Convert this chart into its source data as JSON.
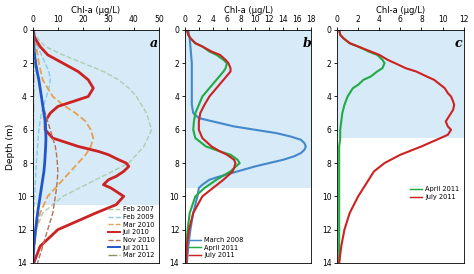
{
  "panel_a": {
    "title": "Chl-a (μg/L)",
    "xlim": [
      0,
      50
    ],
    "xticks": [
      0,
      10,
      20,
      30,
      40,
      50
    ],
    "ylim": [
      14,
      0
    ],
    "yticks": [
      0,
      2,
      4,
      6,
      8,
      10,
      12,
      14
    ],
    "label": "a",
    "bg_depth_start": 0,
    "bg_depth_end": 10.5,
    "series": [
      {
        "name": "Feb 2007",
        "color": "#aacfb0",
        "linestyle": "--",
        "linewidth": 1.0,
        "depth": [
          0,
          0.5,
          1,
          1.5,
          2,
          2.5,
          3,
          3.5,
          4,
          5,
          6,
          7,
          8,
          9,
          10,
          11,
          12,
          13,
          14
        ],
        "chl": [
          0.5,
          2,
          5,
          12,
          20,
          28,
          34,
          38,
          41,
          45,
          47,
          44,
          38,
          25,
          12,
          4,
          1.5,
          0.8,
          0.3
        ]
      },
      {
        "name": "Feb 2009",
        "color": "#88cce8",
        "linestyle": "--",
        "linewidth": 1.0,
        "depth": [
          0,
          0.5,
          1,
          1.5,
          2,
          2.5,
          3,
          3.5,
          4,
          4.5,
          5,
          5.5,
          6,
          7,
          8,
          9,
          10,
          11,
          12,
          13,
          14
        ],
        "chl": [
          0.5,
          1,
          2,
          3.5,
          5,
          6.5,
          7,
          6.5,
          5.5,
          4.5,
          3.5,
          3,
          2.5,
          2,
          1.5,
          1.2,
          0.8,
          0.5,
          0.3,
          0.2,
          0.2
        ]
      },
      {
        "name": "Mar 2010",
        "color": "#e8a050",
        "linestyle": "--",
        "linewidth": 1.3,
        "depth": [
          0,
          0.5,
          1,
          1.5,
          2,
          3,
          4,
          4.5,
          5,
          5.5,
          6,
          6.5,
          7,
          7.5,
          8,
          9,
          10,
          11,
          12,
          13,
          14
        ],
        "chl": [
          0.5,
          1,
          1.5,
          2,
          2.5,
          4,
          8,
          12,
          17,
          21,
          23,
          24,
          23,
          21,
          18,
          12,
          6,
          3,
          1.5,
          0.8,
          0.3
        ]
      },
      {
        "name": "Jul 2010",
        "color": "#cc2222",
        "linestyle": "-",
        "linewidth": 2.0,
        "depth": [
          0,
          0.3,
          0.5,
          1,
          1.5,
          2,
          2.5,
          3,
          3.5,
          4,
          4.2,
          4.4,
          4.6,
          5,
          5.5,
          6,
          6.5,
          7,
          7.3,
          7.5,
          7.8,
          8,
          8.2,
          8.5,
          8.8,
          9,
          9.3,
          9.5,
          9.8,
          10,
          10.5,
          11,
          12,
          13,
          14
        ],
        "chl": [
          0.3,
          0.5,
          1,
          3,
          6,
          12,
          18,
          22,
          24,
          22,
          18,
          14,
          10,
          7,
          5,
          5,
          8,
          18,
          26,
          30,
          34,
          37,
          38,
          36,
          33,
          30,
          28,
          31,
          34,
          36,
          33,
          25,
          10,
          3,
          0.5
        ]
      },
      {
        "name": "Nov 2010",
        "color": "#b87050",
        "linestyle": "--",
        "linewidth": 1.0,
        "depth": [
          0,
          0.5,
          1,
          1.5,
          2,
          2.5,
          3,
          3.5,
          4,
          4.5,
          5,
          5.5,
          6,
          6.5,
          7,
          7.5,
          8,
          8.5,
          9,
          9.5,
          10,
          10.5,
          11,
          12,
          13,
          14
        ],
        "chl": [
          0.3,
          0.5,
          0.8,
          1,
          1.5,
          2,
          2.5,
          3,
          3.5,
          4,
          5,
          6,
          7,
          8,
          9,
          9.5,
          9.8,
          10,
          9.8,
          9.5,
          9,
          8.5,
          8,
          6,
          4,
          2
        ]
      },
      {
        "name": "Jul 2011",
        "color": "#2255cc",
        "linestyle": "-",
        "linewidth": 2.0,
        "depth": [
          0,
          0.5,
          1,
          1.5,
          2,
          2.5,
          3,
          3.5,
          4,
          4.5,
          5,
          5.5,
          6,
          6.5,
          7,
          7.5,
          8,
          8.5,
          9,
          9.5,
          10,
          10.5,
          11,
          12,
          13,
          14
        ],
        "chl": [
          0.2,
          0.3,
          0.5,
          0.8,
          1.2,
          1.8,
          2.5,
          3,
          3.5,
          4,
          4.5,
          5,
          5.2,
          5.3,
          5.2,
          5,
          4.8,
          4.5,
          4,
          3.5,
          3,
          2.5,
          2,
          1.2,
          0.5,
          0.2
        ]
      },
      {
        "name": "Mar 2012",
        "color": "#909060",
        "linestyle": "-.",
        "linewidth": 1.0,
        "depth": [
          0,
          0.5,
          1,
          1.5,
          2,
          2.5,
          3,
          3.5,
          4,
          5,
          6,
          7,
          8,
          9,
          10,
          11,
          12,
          13,
          14
        ],
        "chl": [
          0.2,
          0.3,
          0.4,
          0.5,
          0.5,
          0.5,
          0.5,
          0.5,
          0.4,
          0.4,
          0.3,
          0.3,
          0.3,
          0.2,
          0.2,
          0.2,
          0.2,
          0.2,
          0.2
        ]
      }
    ]
  },
  "panel_b": {
    "title": "Chl-a (μg/L)",
    "xlim": [
      0,
      18
    ],
    "xticks": [
      0,
      2,
      4,
      6,
      8,
      10,
      12,
      14,
      16,
      18
    ],
    "ylim": [
      14,
      0
    ],
    "yticks": [
      0,
      2,
      4,
      6,
      8,
      10,
      12,
      14
    ],
    "label": "b",
    "bg_depth_start": 0,
    "bg_depth_end": 9.5,
    "series": [
      {
        "name": "March 2008",
        "color": "#4488cc",
        "linestyle": "-",
        "linewidth": 1.5,
        "depth": [
          0,
          0.3,
          0.5,
          1,
          1.5,
          2,
          2.5,
          3,
          3.5,
          4,
          4.5,
          5,
          5.3,
          5.5,
          5.8,
          6,
          6.2,
          6.4,
          6.6,
          6.8,
          7,
          7.2,
          7.4,
          7.6,
          7.8,
          8,
          8.2,
          8.5,
          8.8,
          9,
          9.3,
          9.5,
          10,
          10.5,
          11,
          12,
          13,
          14
        ],
        "chl": [
          0.5,
          0.6,
          0.7,
          0.8,
          0.9,
          1.0,
          1.0,
          1.0,
          1.0,
          1.0,
          1.0,
          1.2,
          2,
          4,
          7,
          10,
          13,
          15,
          16.5,
          17,
          17.2,
          17,
          16.5,
          15.5,
          14,
          12,
          10,
          7.5,
          5,
          3.5,
          2.5,
          2.0,
          1.8,
          1.5,
          1.2,
          0.8,
          0.5,
          0.3
        ]
      },
      {
        "name": "April 2011",
        "color": "#22aa44",
        "linestyle": "-",
        "linewidth": 1.5,
        "depth": [
          0,
          0.3,
          0.5,
          0.8,
          1,
          1.3,
          1.5,
          1.8,
          2,
          2.3,
          2.5,
          3,
          3.5,
          4,
          4.5,
          5,
          5.5,
          6,
          6.5,
          7,
          7.3,
          7.5,
          7.8,
          8,
          8.5,
          9,
          9.5,
          10,
          11,
          12,
          13,
          14
        ],
        "chl": [
          0.3,
          0.5,
          0.8,
          1.5,
          2.5,
          3.5,
          4.5,
          5.5,
          6,
          5.8,
          5.5,
          4.5,
          3.5,
          2.5,
          2,
          1.5,
          1.3,
          1.2,
          1.5,
          3,
          5,
          6.5,
          7.5,
          7.8,
          6.5,
          4.5,
          2.8,
          1.5,
          0.7,
          0.4,
          0.2,
          0.2
        ]
      },
      {
        "name": "July 2011",
        "color": "#cc2222",
        "linestyle": "-",
        "linewidth": 1.5,
        "depth": [
          0,
          0.3,
          0.5,
          0.8,
          1,
          1.3,
          1.5,
          1.8,
          2,
          2.3,
          2.5,
          3,
          3.5,
          4,
          4.5,
          5,
          5.5,
          6,
          6.5,
          7,
          7.3,
          7.5,
          7.8,
          8,
          8.3,
          8.5,
          9,
          9.5,
          10,
          11,
          12,
          13,
          14
        ],
        "chl": [
          0.3,
          0.5,
          0.8,
          1.5,
          2.5,
          3.8,
          5,
          5.8,
          6.2,
          6.5,
          6.5,
          5.5,
          4.5,
          3.5,
          2.8,
          2.2,
          2,
          2,
          2.5,
          3.8,
          5,
          6,
          7,
          7.2,
          7,
          6.8,
          5.5,
          4,
          2.5,
          1.2,
          0.6,
          0.3,
          0.2
        ]
      }
    ]
  },
  "panel_c": {
    "title": "Chl-a (μg/L)",
    "xlim": [
      0,
      12
    ],
    "xticks": [
      0,
      2,
      4,
      6,
      8,
      10,
      12
    ],
    "ylim": [
      14,
      0
    ],
    "yticks": [
      0,
      2,
      4,
      6,
      8,
      10,
      12,
      14
    ],
    "label": "c",
    "bg_depth_start": 0,
    "bg_depth_end": 6.5,
    "series": [
      {
        "name": "April 2011",
        "color": "#22aa44",
        "linestyle": "-",
        "linewidth": 1.5,
        "depth": [
          0,
          0.3,
          0.5,
          0.8,
          1,
          1.3,
          1.5,
          1.8,
          2,
          2.3,
          2.5,
          2.8,
          3,
          3.3,
          3.5,
          4,
          4.5,
          5,
          5.5,
          6,
          6.5,
          7,
          8,
          9,
          10,
          11,
          12,
          13,
          14
        ],
        "chl": [
          0.2,
          0.3,
          0.6,
          1.2,
          2,
          3,
          3.8,
          4.3,
          4.5,
          4.3,
          3.8,
          3.2,
          2.5,
          2,
          1.5,
          1.0,
          0.7,
          0.5,
          0.4,
          0.3,
          0.3,
          0.2,
          0.2,
          0.2,
          0.2,
          0.2,
          0.2,
          0.2,
          0.2
        ]
      },
      {
        "name": "July 2011",
        "color": "#cc2222",
        "linestyle": "-",
        "linewidth": 1.5,
        "depth": [
          0,
          0.3,
          0.5,
          0.8,
          1,
          1.3,
          1.5,
          1.8,
          2,
          2.3,
          2.5,
          2.8,
          3,
          3.3,
          3.5,
          3.8,
          4,
          4.3,
          4.5,
          4.8,
          5,
          5.3,
          5.5,
          5.8,
          6,
          6.3,
          6.5,
          7,
          7.5,
          8,
          8.5,
          9,
          9.5,
          10,
          11,
          12,
          13,
          14
        ],
        "chl": [
          0.2,
          0.3,
          0.6,
          1.2,
          2,
          3.2,
          4,
          4.8,
          5.5,
          6.5,
          7.5,
          8.5,
          9.2,
          9.8,
          10.2,
          10.5,
          10.8,
          11,
          11.1,
          11,
          10.8,
          10.5,
          10.3,
          10.5,
          10.8,
          10.5,
          9.8,
          8,
          6,
          4.5,
          3.5,
          3,
          2.5,
          2,
          1.2,
          0.7,
          0.4,
          0.2
        ]
      }
    ]
  },
  "ylabel": "Depth (m)",
  "bg_color": "#d6eaf8",
  "fig_bg": "#ffffff"
}
